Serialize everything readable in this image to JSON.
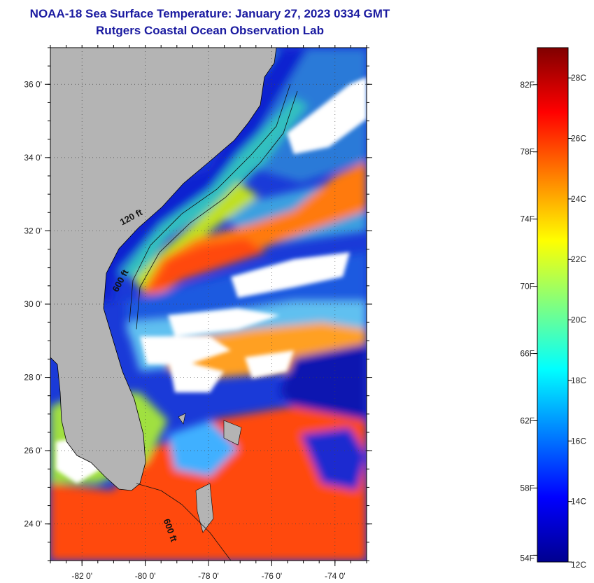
{
  "title": "NOAA-18 Sea Surface Temperature:  January 27, 2023 0334 GMT",
  "subtitle": "Rutgers Coastal Ocean Observation Lab",
  "map": {
    "lon_ticks": [
      {
        "lon": -82,
        "label": "-82 0'"
      },
      {
        "lon": -80,
        "label": "-80 0'"
      },
      {
        "lon": -78,
        "label": "-78 0'"
      },
      {
        "lon": -76,
        "label": "-76 0'"
      },
      {
        "lon": -74,
        "label": "-74 0'"
      }
    ],
    "lat_ticks": [
      {
        "lat": 36,
        "label": "36 0'"
      },
      {
        "lat": 34,
        "label": "34 0'"
      },
      {
        "lat": 32,
        "label": "32 0'"
      },
      {
        "lat": 30,
        "label": "30 0'"
      },
      {
        "lat": 28,
        "label": "28 0'"
      },
      {
        "lat": 26,
        "label": "26 0'"
      },
      {
        "lat": 24,
        "label": "24 0'"
      }
    ],
    "lon_range": [
      -83,
      -73
    ],
    "lat_range": [
      23,
      37
    ],
    "depth_labels": [
      {
        "text": "120 ft",
        "lon": -80.4,
        "lat": 32.3
      },
      {
        "text": "600 ft",
        "lon": -80.7,
        "lat": 30.6
      },
      {
        "text": "600 ft",
        "lon": -79.3,
        "lat": 23.8
      }
    ],
    "colors": {
      "land": "#b4b4b4",
      "cloud": "#ffffff",
      "cold": "#1a1ae0",
      "warm": "#ff4010",
      "gulfstream": "#ff7a10"
    }
  },
  "colorbar": {
    "fahrenheit": [
      {
        "value": 82,
        "label": "82F"
      },
      {
        "value": 78,
        "label": "78F"
      },
      {
        "value": 74,
        "label": "74F"
      },
      {
        "value": 70,
        "label": "70F"
      },
      {
        "value": 66,
        "label": "66F"
      },
      {
        "value": 62,
        "label": "62F"
      },
      {
        "value": 58,
        "label": "58F"
      },
      {
        "value": 54,
        "label": "54F"
      }
    ],
    "celsius": [
      {
        "value": 28,
        "label": "28C"
      },
      {
        "value": 26,
        "label": "26C"
      },
      {
        "value": 24,
        "label": "24C"
      },
      {
        "value": 22,
        "label": "22C"
      },
      {
        "value": 20,
        "label": "20C"
      },
      {
        "value": 18,
        "label": "18C"
      },
      {
        "value": 16,
        "label": "16C"
      },
      {
        "value": 14,
        "label": "14C"
      },
      {
        "value": 12,
        "label": "12C"
      }
    ],
    "range_c": [
      12,
      29
    ],
    "stops": [
      "#00008f",
      "#0000ff",
      "#0080ff",
      "#00ffff",
      "#80ff80",
      "#ffff00",
      "#ff8000",
      "#ff0000",
      "#800000"
    ]
  }
}
